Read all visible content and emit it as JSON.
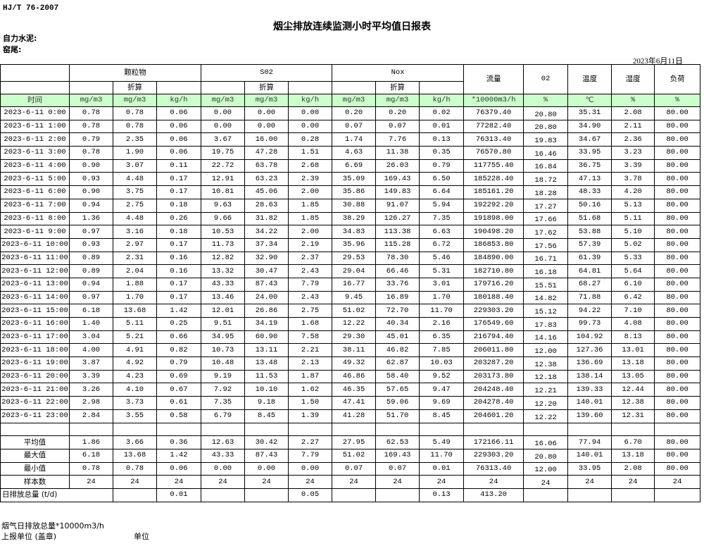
{
  "standard": "HJ/T  76-2007",
  "title": "烟尘排放连续监测小时平均值日报表",
  "company": "自力水泥:",
  "location": "窑尾:",
  "date": "2023年6月11日",
  "header": {
    "particulate": "颗粒物",
    "so2": "S02",
    "nox": "Nox",
    "converted": "折算",
    "flow": "流量",
    "o2": "02",
    "temperature": "温度",
    "humidity": "湿度",
    "load": "负荷",
    "time": "时间"
  },
  "units": [
    "mg/m3",
    "mg/m3",
    "kg/h",
    "mg/m3",
    "mg/m3",
    "kg/h",
    "mg/m3",
    "mg/m3",
    "kg/h",
    "*10000m3/h",
    "%",
    "℃",
    "%",
    "%"
  ],
  "rows": [
    [
      "2023-6-11 0:00",
      "0.78",
      "0.78",
      "0.06",
      "0.00",
      "0.00",
      "0.00",
      "0.20",
      "0.20",
      "0.02",
      "76379.40",
      "20.80",
      "35.31",
      "2.08",
      "80.00"
    ],
    [
      "2023-6-11 1:00",
      "0.78",
      "0.78",
      "0.06",
      "0.00",
      "0.00",
      "0.00",
      "0.07",
      "0.07",
      "0.01",
      "77282.40",
      "20.80",
      "34.90",
      "2.11",
      "80.00"
    ],
    [
      "2023-6-11 2:00",
      "0.79",
      "2.35",
      "0.06",
      "3.67",
      "16.00",
      "0.28",
      "1.74",
      "7.76",
      "0.13",
      "76313.40",
      "19.83",
      "34.67",
      "2.36",
      "80.00"
    ],
    [
      "2023-6-11 3:00",
      "0.78",
      "1.90",
      "0.06",
      "19.75",
      "47.28",
      "1.51",
      "4.63",
      "11.38",
      "0.35",
      "76570.80",
      "16.46",
      "33.95",
      "3.23",
      "80.00"
    ],
    [
      "2023-6-11 4:00",
      "0.90",
      "3.07",
      "0.11",
      "22.72",
      "63.78",
      "2.68",
      "6.69",
      "26.03",
      "0.79",
      "117755.40",
      "16.84",
      "36.75",
      "3.39",
      "80.00"
    ],
    [
      "2023-6-11 5:00",
      "0.93",
      "4.48",
      "0.17",
      "12.91",
      "63.23",
      "2.39",
      "35.09",
      "169.43",
      "6.50",
      "185228.40",
      "18.72",
      "47.13",
      "3.78",
      "80.00"
    ],
    [
      "2023-6-11 6:00",
      "0.90",
      "3.75",
      "0.17",
      "10.81",
      "45.06",
      "2.00",
      "35.86",
      "149.83",
      "6.64",
      "185161.20",
      "18.28",
      "48.33",
      "4.20",
      "80.00"
    ],
    [
      "2023-6-11 7:00",
      "0.94",
      "2.75",
      "0.18",
      "9.63",
      "28.63",
      "1.85",
      "30.88",
      "91.07",
      "5.94",
      "192292.20",
      "17.27",
      "50.16",
      "5.13",
      "80.00"
    ],
    [
      "2023-6-11 8:00",
      "1.36",
      "4.48",
      "0.26",
      "9.66",
      "31.82",
      "1.85",
      "38.29",
      "126.27",
      "7.35",
      "191898.00",
      "17.66",
      "51.68",
      "5.11",
      "80.00"
    ],
    [
      "2023-6-11 9:00",
      "0.97",
      "3.16",
      "0.18",
      "10.53",
      "34.22",
      "2.00",
      "34.83",
      "113.38",
      "6.63",
      "190498.20",
      "17.62",
      "53.88",
      "5.10",
      "80.00"
    ],
    [
      "2023-6-11 10:00",
      "0.93",
      "2.97",
      "0.17",
      "11.73",
      "37.34",
      "2.19",
      "35.96",
      "115.28",
      "6.72",
      "186853.80",
      "17.56",
      "57.39",
      "5.02",
      "80.00"
    ],
    [
      "2023-6-11 11:00",
      "0.89",
      "2.31",
      "0.16",
      "12.82",
      "32.90",
      "2.37",
      "29.53",
      "78.30",
      "5.46",
      "184890.00",
      "16.71",
      "61.39",
      "5.33",
      "80.00"
    ],
    [
      "2023-6-11 12:00",
      "0.89",
      "2.04",
      "0.16",
      "13.32",
      "30.47",
      "2.43",
      "29.04",
      "66.46",
      "5.31",
      "182710.80",
      "16.18",
      "64.81",
      "5.64",
      "80.00"
    ],
    [
      "2023-6-11 13:00",
      "0.94",
      "1.88",
      "0.17",
      "43.33",
      "87.43",
      "7.79",
      "16.77",
      "33.76",
      "3.01",
      "179716.20",
      "15.51",
      "68.27",
      "6.10",
      "80.00"
    ],
    [
      "2023-6-11 14:00",
      "0.97",
      "1.70",
      "0.17",
      "13.46",
      "24.00",
      "2.43",
      "9.45",
      "16.89",
      "1.70",
      "180188.40",
      "14.82",
      "71.88",
      "6.42",
      "80.00"
    ],
    [
      "2023-6-11 15:00",
      "6.18",
      "13.68",
      "1.42",
      "12.01",
      "26.86",
      "2.75",
      "51.02",
      "72.70",
      "11.70",
      "229303.20",
      "15.12",
      "94.22",
      "7.10",
      "80.00"
    ],
    [
      "2023-6-11 16:00",
      "1.40",
      "5.11",
      "0.25",
      "9.51",
      "34.19",
      "1.68",
      "12.22",
      "40.34",
      "2.16",
      "176549.60",
      "17.83",
      "99.73",
      "4.08",
      "80.00"
    ],
    [
      "2023-6-11 17:00",
      "3.04",
      "5.21",
      "0.66",
      "34.95",
      "60.90",
      "7.58",
      "29.30",
      "45.01",
      "6.35",
      "216794.40",
      "14.16",
      "104.92",
      "8.13",
      "80.00"
    ],
    [
      "2023-6-11 18:00",
      "4.00",
      "4.91",
      "0.82",
      "10.73",
      "13.11",
      "2.21",
      "38.11",
      "46.82",
      "7.85",
      "206011.80",
      "12.00",
      "127.36",
      "13.01",
      "80.00"
    ],
    [
      "2023-6-11 19:00",
      "3.87",
      "4.92",
      "0.79",
      "10.48",
      "13.48",
      "2.13",
      "49.32",
      "62.87",
      "10.03",
      "203287.20",
      "12.38",
      "136.69",
      "13.18",
      "80.00"
    ],
    [
      "2023-6-11 20:00",
      "3.39",
      "4.23",
      "0.69",
      "9.19",
      "11.53",
      "1.87",
      "46.86",
      "58.40",
      "9.52",
      "203173.80",
      "12.18",
      "138.14",
      "13.05",
      "80.00"
    ],
    [
      "2023-6-11 21:00",
      "3.26",
      "4.10",
      "0.67",
      "7.92",
      "10.10",
      "1.62",
      "46.35",
      "57.65",
      "9.47",
      "204248.40",
      "12.21",
      "139.33",
      "12.44",
      "80.00"
    ],
    [
      "2023-6-11 22:00",
      "2.98",
      "3.73",
      "0.61",
      "7.35",
      "9.18",
      "1.50",
      "47.41",
      "59.06",
      "9.69",
      "204278.40",
      "12.20",
      "140.01",
      "12.38",
      "80.00"
    ],
    [
      "2023-6-11 23:00",
      "2.84",
      "3.55",
      "0.58",
      "6.79",
      "8.45",
      "1.39",
      "41.28",
      "51.70",
      "8.45",
      "204601.20",
      "12.22",
      "139.60",
      "12.31",
      "80.00"
    ]
  ],
  "summary": [
    [
      "平均值",
      "1.86",
      "3.66",
      "0.36",
      "12.63",
      "30.42",
      "2.27",
      "27.95",
      "62.53",
      "5.49",
      "172166.11",
      "16.06",
      "77.94",
      "6.70",
      "80.00"
    ],
    [
      "最大值",
      "6.18",
      "13.68",
      "1.42",
      "43.33",
      "87.43",
      "7.79",
      "51.02",
      "169.43",
      "11.70",
      "229303.20",
      "20.80",
      "140.01",
      "13.18",
      "80.00"
    ],
    [
      "最小值",
      "0.78",
      "0.78",
      "0.06",
      "0.00",
      "0.00",
      "0.00",
      "0.07",
      "0.07",
      "0.01",
      "76313.40",
      "12.00",
      "33.95",
      "2.08",
      "80.00"
    ],
    [
      "样本数",
      "24",
      "24",
      "24",
      "24",
      "24",
      "24",
      "24",
      "24",
      "24",
      "24",
      "24",
      "24",
      "24",
      "24"
    ]
  ],
  "daily": [
    "日排放总量 (t/d)",
    "",
    "0.01",
    "",
    "",
    "0.05",
    "",
    "",
    "0.13",
    "413.20",
    "",
    "",
    "",
    ""
  ],
  "footer": {
    "flue_gas_total": "烟气日排放总量*10000m3/h",
    "reporting_unit": "上报单位 (盖章)",
    "unit": "单位"
  }
}
